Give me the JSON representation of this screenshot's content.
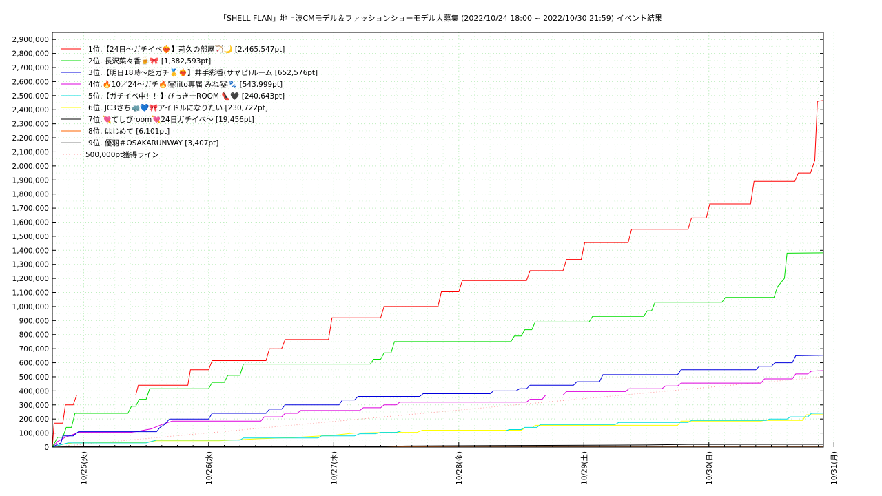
{
  "chart_data": {
    "type": "line",
    "title": "「SHELL FLAN」地上波CMモデル＆ファッションショーモデル大募集 (2022/10/24 18:00 ~ 2022/10/30 21:59)",
    "subtitle": "イベント結果",
    "xlabel": "",
    "ylabel": "",
    "ylim": [
      0,
      2950000
    ],
    "xlim": [
      "2022/10/24 18:00",
      "2022/10/30 21:59"
    ],
    "grid": true,
    "legend_position": "top-left",
    "y_ticks": [
      "0",
      "100,000",
      "200,000",
      "300,000",
      "400,000",
      "500,000",
      "600,000",
      "700,000",
      "800,000",
      "900,000",
      "1,000,000",
      "1,100,000",
      "1,200,000",
      "1,300,000",
      "1,400,000",
      "1,500,000",
      "1,600,000",
      "1,700,000",
      "1,800,000",
      "1,900,000",
      "2,000,000",
      "2,100,000",
      "2,200,000",
      "2,300,000",
      "2,400,000",
      "2,500,000",
      "2,600,000",
      "2,700,000",
      "2,800,000",
      "2,900,000"
    ],
    "x_ticks": [
      {
        "date": "10/25",
        "label": "10/25(火)"
      },
      {
        "date": "10/26",
        "label": "10/26(水)"
      },
      {
        "date": "10/27",
        "label": "10/27(木)"
      },
      {
        "date": "10/28",
        "label": "10/28(金)"
      },
      {
        "date": "10/29",
        "label": "10/29(土)"
      },
      {
        "date": "10/30",
        "label": "10/30(日)"
      },
      {
        "date": "10/31",
        "label": "10/31(月)"
      }
    ],
    "reference_line": {
      "name": "500,000pt獲得ライン",
      "color": "#ff9999",
      "from": 0,
      "to": 500000
    },
    "series": [
      {
        "name": "1位.【24日〜ガチイベ❤️‍🔥】莉久の部屋🏹🌙 [2,465,547pt]",
        "color": "#ff0000",
        "points": [
          [
            "10/24 18:00",
            0
          ],
          [
            "10/24 18:20",
            170000
          ],
          [
            "10/24 20:00",
            170000
          ],
          [
            "10/24 20:30",
            300000
          ],
          [
            "10/24 22:00",
            300000
          ],
          [
            "10/24 22:40",
            370000
          ],
          [
            "10/25 10:00",
            370000
          ],
          [
            "10/25 10:30",
            440000
          ],
          [
            "10/25 20:00",
            440000
          ],
          [
            "10/25 20:30",
            550000
          ],
          [
            "10/26 0:00",
            550000
          ],
          [
            "10/26 0:40",
            615000
          ],
          [
            "10/26 11:00",
            615000
          ],
          [
            "10/26 11:40",
            700000
          ],
          [
            "10/26 14:00",
            700000
          ],
          [
            "10/26 14:40",
            765000
          ],
          [
            "10/26 23:00",
            765000
          ],
          [
            "10/26 23:40",
            920000
          ],
          [
            "10/27 9:00",
            920000
          ],
          [
            "10/27 9:40",
            1000000
          ],
          [
            "10/27 20:00",
            1000000
          ],
          [
            "10/27 20:40",
            1105000
          ],
          [
            "10/28 0:00",
            1105000
          ],
          [
            "10/28 0:40",
            1185000
          ],
          [
            "10/28 13:00",
            1185000
          ],
          [
            "10/28 13:40",
            1255000
          ],
          [
            "10/28 20:00",
            1255000
          ],
          [
            "10/28 20:40",
            1335000
          ],
          [
            "10/28 23:30",
            1335000
          ],
          [
            "10/29 0:10",
            1455000
          ],
          [
            "10/29 8:30",
            1455000
          ],
          [
            "10/29 9:10",
            1550000
          ],
          [
            "10/29 20:00",
            1550000
          ],
          [
            "10/29 20:40",
            1630000
          ],
          [
            "10/29 23:30",
            1630000
          ],
          [
            "10/30 0:10",
            1730000
          ],
          [
            "10/30 8:00",
            1730000
          ],
          [
            "10/30 8:40",
            1890000
          ],
          [
            "10/30 16:30",
            1890000
          ],
          [
            "10/30 17:10",
            1950000
          ],
          [
            "10/30 19:30",
            1950000
          ],
          [
            "10/30 20:20",
            2040000
          ],
          [
            "10/30 20:50",
            2460000
          ],
          [
            "10/30 21:59",
            2465547
          ]
        ]
      },
      {
        "name": "2位. 長沢菜々香🍺🎀 [1,382,593pt]",
        "color": "#00dd00",
        "points": [
          [
            "10/24 18:00",
            0
          ],
          [
            "10/24 19:00",
            70000
          ],
          [
            "10/24 20:00",
            70000
          ],
          [
            "10/24 20:40",
            140000
          ],
          [
            "10/24 21:40",
            140000
          ],
          [
            "10/24 22:20",
            240000
          ],
          [
            "10/25 8:30",
            240000
          ],
          [
            "10/25 9:10",
            290000
          ],
          [
            "10/25 10:00",
            290000
          ],
          [
            "10/25 10:40",
            340000
          ],
          [
            "10/25 12:00",
            340000
          ],
          [
            "10/25 12:40",
            415000
          ],
          [
            "10/26 0:00",
            415000
          ],
          [
            "10/26 0:40",
            460000
          ],
          [
            "10/26 3:00",
            460000
          ],
          [
            "10/26 3:40",
            510000
          ],
          [
            "10/26 6:00",
            510000
          ],
          [
            "10/26 6:40",
            590000
          ],
          [
            "10/27 7:00",
            590000
          ],
          [
            "10/27 7:40",
            625000
          ],
          [
            "10/27 9:00",
            625000
          ],
          [
            "10/27 9:40",
            670000
          ],
          [
            "10/27 11:00",
            670000
          ],
          [
            "10/27 11:40",
            750000
          ],
          [
            "10/28 10:00",
            750000
          ],
          [
            "10/28 10:40",
            790000
          ],
          [
            "10/28 12:00",
            790000
          ],
          [
            "10/28 12:40",
            835000
          ],
          [
            "10/28 14:00",
            835000
          ],
          [
            "10/28 14:40",
            890000
          ],
          [
            "10/29 1:00",
            890000
          ],
          [
            "10/29 1:40",
            930000
          ],
          [
            "10/29 11:30",
            930000
          ],
          [
            "10/29 12:10",
            970000
          ],
          [
            "10/29 13:00",
            970000
          ],
          [
            "10/29 13:40",
            1030000
          ],
          [
            "10/30 2:30",
            1030000
          ],
          [
            "10/30 3:10",
            1065000
          ],
          [
            "10/30 12:30",
            1065000
          ],
          [
            "10/30 13:10",
            1140000
          ],
          [
            "10/30 14:30",
            1200000
          ],
          [
            "10/30 15:00",
            1380000
          ],
          [
            "10/30 21:59",
            1382593
          ]
        ]
      },
      {
        "name": "3位.【明日18時〜超ガチ🥇❤️‍🔥】井手彩香(サヤピ)ルーム [652,576pt]",
        "color": "#0000dd",
        "points": [
          [
            "10/24 18:00",
            0
          ],
          [
            "10/24 19:00",
            20000
          ],
          [
            "10/24 19:40",
            30000
          ],
          [
            "10/24 20:00",
            80000
          ],
          [
            "10/24 22:00",
            80000
          ],
          [
            "10/24 23:00",
            110000
          ],
          [
            "10/25 14:00",
            110000
          ],
          [
            "10/25 14:40",
            140000
          ],
          [
            "10/25 15:30",
            160000
          ],
          [
            "10/25 16:30",
            200000
          ],
          [
            "10/26 0:00",
            200000
          ],
          [
            "10/26 0:40",
            240000
          ],
          [
            "10/26 11:00",
            240000
          ],
          [
            "10/26 11:40",
            270000
          ],
          [
            "10/26 14:00",
            270000
          ],
          [
            "10/26 14:40",
            300000
          ],
          [
            "10/27 1:00",
            300000
          ],
          [
            "10/27 1:40",
            335000
          ],
          [
            "10/27 4:00",
            335000
          ],
          [
            "10/27 4:40",
            360000
          ],
          [
            "10/27 16:30",
            360000
          ],
          [
            "10/27 17:10",
            380000
          ],
          [
            "10/28 6:00",
            380000
          ],
          [
            "10/28 6:40",
            400000
          ],
          [
            "10/28 11:00",
            400000
          ],
          [
            "10/28 11:40",
            415000
          ],
          [
            "10/28 13:00",
            415000
          ],
          [
            "10/28 13:40",
            440000
          ],
          [
            "10/28 22:00",
            440000
          ],
          [
            "10/28 22:40",
            465000
          ],
          [
            "10/29 3:00",
            465000
          ],
          [
            "10/29 3:40",
            515000
          ],
          [
            "10/29 18:00",
            515000
          ],
          [
            "10/29 18:40",
            550000
          ],
          [
            "10/30 9:00",
            550000
          ],
          [
            "10/30 9:40",
            575000
          ],
          [
            "10/30 12:00",
            575000
          ],
          [
            "10/30 12:40",
            600000
          ],
          [
            "10/30 16:00",
            600000
          ],
          [
            "10/30 16:40",
            650000
          ],
          [
            "10/30 21:59",
            652576
          ]
        ]
      },
      {
        "name": "4位.🔥10／24〜ガチ🔥🐼iito専属 みね🐼🐾 [543,999pt]",
        "color": "#dd00dd",
        "points": [
          [
            "10/24 18:00",
            0
          ],
          [
            "10/24 19:00",
            40000
          ],
          [
            "10/24 20:30",
            70000
          ],
          [
            "10/24 22:00",
            90000
          ],
          [
            "10/24 23:00",
            105000
          ],
          [
            "10/25 9:00",
            105000
          ],
          [
            "10/25 10:00",
            110000
          ],
          [
            "10/25 13:00",
            130000
          ],
          [
            "10/25 15:00",
            160000
          ],
          [
            "10/25 17:00",
            185000
          ],
          [
            "10/26 10:00",
            185000
          ],
          [
            "10/26 10:40",
            215000
          ],
          [
            "10/26 14:00",
            215000
          ],
          [
            "10/26 14:40",
            240000
          ],
          [
            "10/26 17:00",
            240000
          ],
          [
            "10/26 17:40",
            260000
          ],
          [
            "10/27 5:00",
            260000
          ],
          [
            "10/27 5:40",
            280000
          ],
          [
            "10/27 9:00",
            280000
          ],
          [
            "10/27 9:40",
            300000
          ],
          [
            "10/27 12:00",
            300000
          ],
          [
            "10/27 12:40",
            320000
          ],
          [
            "10/28 13:00",
            320000
          ],
          [
            "10/28 13:40",
            340000
          ],
          [
            "10/28 16:00",
            340000
          ],
          [
            "10/28 16:40",
            370000
          ],
          [
            "10/28 20:00",
            370000
          ],
          [
            "10/28 20:40",
            395000
          ],
          [
            "10/29 8:00",
            395000
          ],
          [
            "10/29 8:40",
            415000
          ],
          [
            "10/29 15:00",
            415000
          ],
          [
            "10/29 15:40",
            435000
          ],
          [
            "10/29 18:00",
            435000
          ],
          [
            "10/29 18:40",
            455000
          ],
          [
            "10/30 10:00",
            455000
          ],
          [
            "10/30 10:40",
            485000
          ],
          [
            "10/30 16:00",
            485000
          ],
          [
            "10/30 16:40",
            520000
          ],
          [
            "10/30 19:00",
            520000
          ],
          [
            "10/30 19:40",
            540000
          ],
          [
            "10/30 21:59",
            543999
          ]
        ]
      },
      {
        "name": "5位.【ガチイベ中！！】びっきーROOM 👠🖤 [240,643pt]",
        "color": "#00dddd",
        "points": [
          [
            "10/24 18:00",
            0
          ],
          [
            "10/24 20:00",
            20000
          ],
          [
            "10/24 21:00",
            30000
          ],
          [
            "10/25 12:00",
            30000
          ],
          [
            "10/25 14:00",
            50000
          ],
          [
            "10/26 6:00",
            50000
          ],
          [
            "10/26 6:40",
            65000
          ],
          [
            "10/26 21:00",
            65000
          ],
          [
            "10/26 21:40",
            80000
          ],
          [
            "10/27 4:00",
            80000
          ],
          [
            "10/27 5:00",
            95000
          ],
          [
            "10/27 8:00",
            95000
          ],
          [
            "10/27 9:00",
            105000
          ],
          [
            "10/27 12:00",
            105000
          ],
          [
            "10/27 13:00",
            115000
          ],
          [
            "10/28 9:00",
            115000
          ],
          [
            "10/28 9:40",
            125000
          ],
          [
            "10/28 12:00",
            125000
          ],
          [
            "10/28 12:40",
            140000
          ],
          [
            "10/28 15:00",
            140000
          ],
          [
            "10/28 15:40",
            160000
          ],
          [
            "10/29 6:00",
            160000
          ],
          [
            "10/29 6:40",
            175000
          ],
          [
            "10/29 20:00",
            175000
          ],
          [
            "10/29 20:40",
            190000
          ],
          [
            "10/30 11:00",
            190000
          ],
          [
            "10/30 11:40",
            200000
          ],
          [
            "10/30 15:00",
            200000
          ],
          [
            "10/30 15:40",
            215000
          ],
          [
            "10/30 19:00",
            215000
          ],
          [
            "10/30 19:40",
            240000
          ],
          [
            "10/30 21:59",
            240643
          ]
        ]
      },
      {
        "name": "6位. JC3さち🦏💙🎀アイドルになりたい [230,722pt]",
        "color": "#ffff00",
        "points": [
          [
            "10/24 18:00",
            0
          ],
          [
            "10/24 20:00",
            20000
          ],
          [
            "10/24 22:00",
            30000
          ],
          [
            "10/25 12:00",
            35000
          ],
          [
            "10/25 14:00",
            45000
          ],
          [
            "10/26 2:00",
            45000
          ],
          [
            "10/26 10:00",
            60000
          ],
          [
            "10/26 17:00",
            70000
          ],
          [
            "10/27 0:00",
            85000
          ],
          [
            "10/27 4:00",
            100000
          ],
          [
            "10/27 10:00",
            105000
          ],
          [
            "10/27 16:00",
            105000
          ],
          [
            "10/27 17:00",
            120000
          ],
          [
            "10/28 12:00",
            120000
          ],
          [
            "10/28 12:40",
            135000
          ],
          [
            "10/28 14:00",
            135000
          ],
          [
            "10/28 14:40",
            155000
          ],
          [
            "10/29 18:00",
            155000
          ],
          [
            "10/29 18:40",
            185000
          ],
          [
            "10/30 10:00",
            185000
          ],
          [
            "10/30 10:40",
            190000
          ],
          [
            "10/30 18:00",
            190000
          ],
          [
            "10/30 18:40",
            230000
          ],
          [
            "10/30 21:59",
            230722
          ]
        ]
      },
      {
        "name": "7位.💘てしびroom💘24日ガチイベ〜 [19,456pt]",
        "color": "#000000",
        "points": [
          [
            "10/24 18:00",
            0
          ],
          [
            "10/24 20:00",
            2000
          ],
          [
            "10/25 20:00",
            3000
          ],
          [
            "10/27 8:00",
            4000
          ],
          [
            "10/27 14:00",
            8000
          ],
          [
            "10/28 12:00",
            12000
          ],
          [
            "10/29 12:00",
            15000
          ],
          [
            "10/29 20:00",
            19000
          ],
          [
            "10/30 21:59",
            19456
          ]
        ]
      },
      {
        "name": "8位. はじめて [6,101pt]",
        "color": "#ff6600",
        "points": [
          [
            "10/24 18:00",
            0
          ],
          [
            "10/25 0:00",
            2000
          ],
          [
            "10/26 0:00",
            4000
          ],
          [
            "10/27 0:00",
            5000
          ],
          [
            "10/28 0:00",
            6000
          ],
          [
            "10/30 21:59",
            6101
          ]
        ]
      },
      {
        "name": "9位. 優羽＃OSAKARUNWAY [3,407pt]",
        "color": "#888888",
        "points": [
          [
            "10/24 18:00",
            0
          ],
          [
            "10/24 22:00",
            1000
          ],
          [
            "10/26 0:00",
            2500
          ],
          [
            "10/28 0:00",
            3000
          ],
          [
            "10/30 21:59",
            3407
          ]
        ]
      }
    ]
  }
}
